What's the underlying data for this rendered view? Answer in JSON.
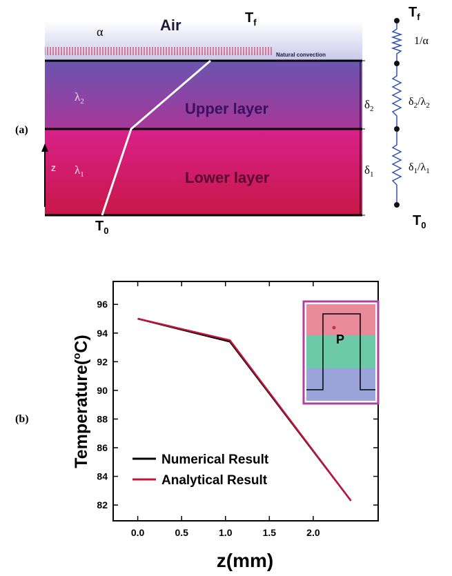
{
  "panel_a": {
    "label": "(a)",
    "alpha": "α",
    "air": "Air",
    "t_f": {
      "main": "T",
      "sub": "f"
    },
    "natural_convection": "Natural convection",
    "lambda_2": {
      "main": "λ",
      "sub": "2"
    },
    "upper_layer": "Upper layer",
    "delta_2": {
      "main": "δ",
      "sub": "2"
    },
    "lambda_1": {
      "main": "λ",
      "sub": "1"
    },
    "lower_layer": "Lower layer",
    "delta_1": {
      "main": "δ",
      "sub": "1"
    },
    "z": "z",
    "t_0": {
      "main": "T",
      "sub": "0"
    },
    "circuit": {
      "t_f": {
        "main": "T",
        "sub": "f"
      },
      "r_air": "1/α",
      "r_upper": {
        "main1": "δ",
        "sub1": "2",
        "main2": "/λ",
        "sub2": "2"
      },
      "r_lower": {
        "main1": "δ",
        "sub1": "1",
        "main2": "/λ",
        "sub2": "1"
      },
      "t_0": {
        "main": "T",
        "sub": "0"
      }
    }
  },
  "chart_data": {
    "type": "line",
    "label": "(b)",
    "xlabel": "z(mm)",
    "ylabel": {
      "text": "Temperature(",
      "sup": "o",
      "tail": "C)"
    },
    "x": [
      0,
      1.05,
      2.43
    ],
    "series": [
      {
        "name": "Numerical Result",
        "color": "#000000",
        "values": [
          95,
          93.4,
          82.3
        ]
      },
      {
        "name": "Analytical Result",
        "color": "#c0143c",
        "values": [
          95,
          93.5,
          82.3
        ]
      }
    ],
    "xlim": [
      -0.28,
      2.74
    ],
    "xticks": [
      {
        "value": 0,
        "label": "0.0"
      },
      {
        "value": 0.5,
        "label": "0.5"
      },
      {
        "value": 1,
        "label": "1.0"
      },
      {
        "value": 1.5,
        "label": "1.5"
      },
      {
        "value": 2,
        "label": "2.0"
      }
    ],
    "ylim": [
      80.9,
      97.6
    ],
    "yticks": [
      82,
      84,
      86,
      88,
      90,
      92,
      94,
      96
    ],
    "legend": "lower left",
    "inset_label": "P"
  }
}
